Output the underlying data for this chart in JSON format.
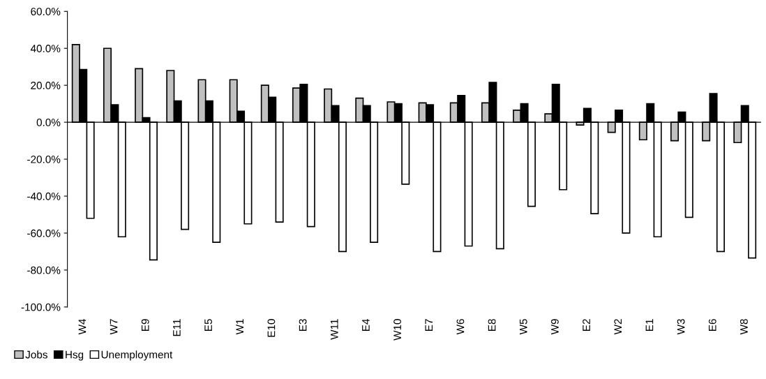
{
  "chart_data": {
    "type": "bar",
    "categories": [
      "W4",
      "W7",
      "E9",
      "E11",
      "E5",
      "W1",
      "E10",
      "E3",
      "W11",
      "E4",
      "W10",
      "E7",
      "W6",
      "E8",
      "W5",
      "W9",
      "E2",
      "W2",
      "E1",
      "W3",
      "E6",
      "W8"
    ],
    "series": [
      {
        "name": "Jobs",
        "color": "#c0c0c0",
        "values": [
          42,
          40,
          29,
          28,
          23,
          23,
          20,
          18.5,
          18,
          13,
          11,
          10.5,
          10.5,
          10.5,
          6.5,
          4.5,
          -1.5,
          -5.5,
          -9.5,
          -10,
          -10,
          -11
        ]
      },
      {
        "name": "Hsg",
        "color": "#000000",
        "values": [
          28.5,
          9.5,
          2.5,
          11.5,
          11.5,
          6,
          13.5,
          20.5,
          9,
          9,
          10,
          9.5,
          14.5,
          21.5,
          10,
          20.5,
          7.5,
          6.5,
          10,
          5.5,
          15.5,
          9
        ]
      },
      {
        "name": "Unemployment",
        "color": "#ffffff",
        "values": [
          -52,
          -62,
          -74.5,
          -58,
          -65,
          -55,
          -54,
          -56.5,
          -70,
          -65,
          -33.5,
          -70,
          -67,
          -68.5,
          -45.5,
          -36.5,
          -49.5,
          -60,
          -62,
          -51.5,
          -70,
          -73.5
        ]
      }
    ],
    "ylim": [
      -100,
      60
    ],
    "yticks": [
      {
        "value": -100,
        "label": "-100.0%"
      },
      {
        "value": -80,
        "label": "-80.0%"
      },
      {
        "value": -60,
        "label": "-60.0%"
      },
      {
        "value": -40,
        "label": "-40.0%"
      },
      {
        "value": -20,
        "label": "-20.0%"
      },
      {
        "value": 0,
        "label": "0.0%"
      },
      {
        "value": 20,
        "label": "20.0%"
      },
      {
        "value": 40,
        "label": "40.0%"
      },
      {
        "value": 60,
        "label": "60.0%"
      }
    ],
    "legend": "bottom left"
  }
}
